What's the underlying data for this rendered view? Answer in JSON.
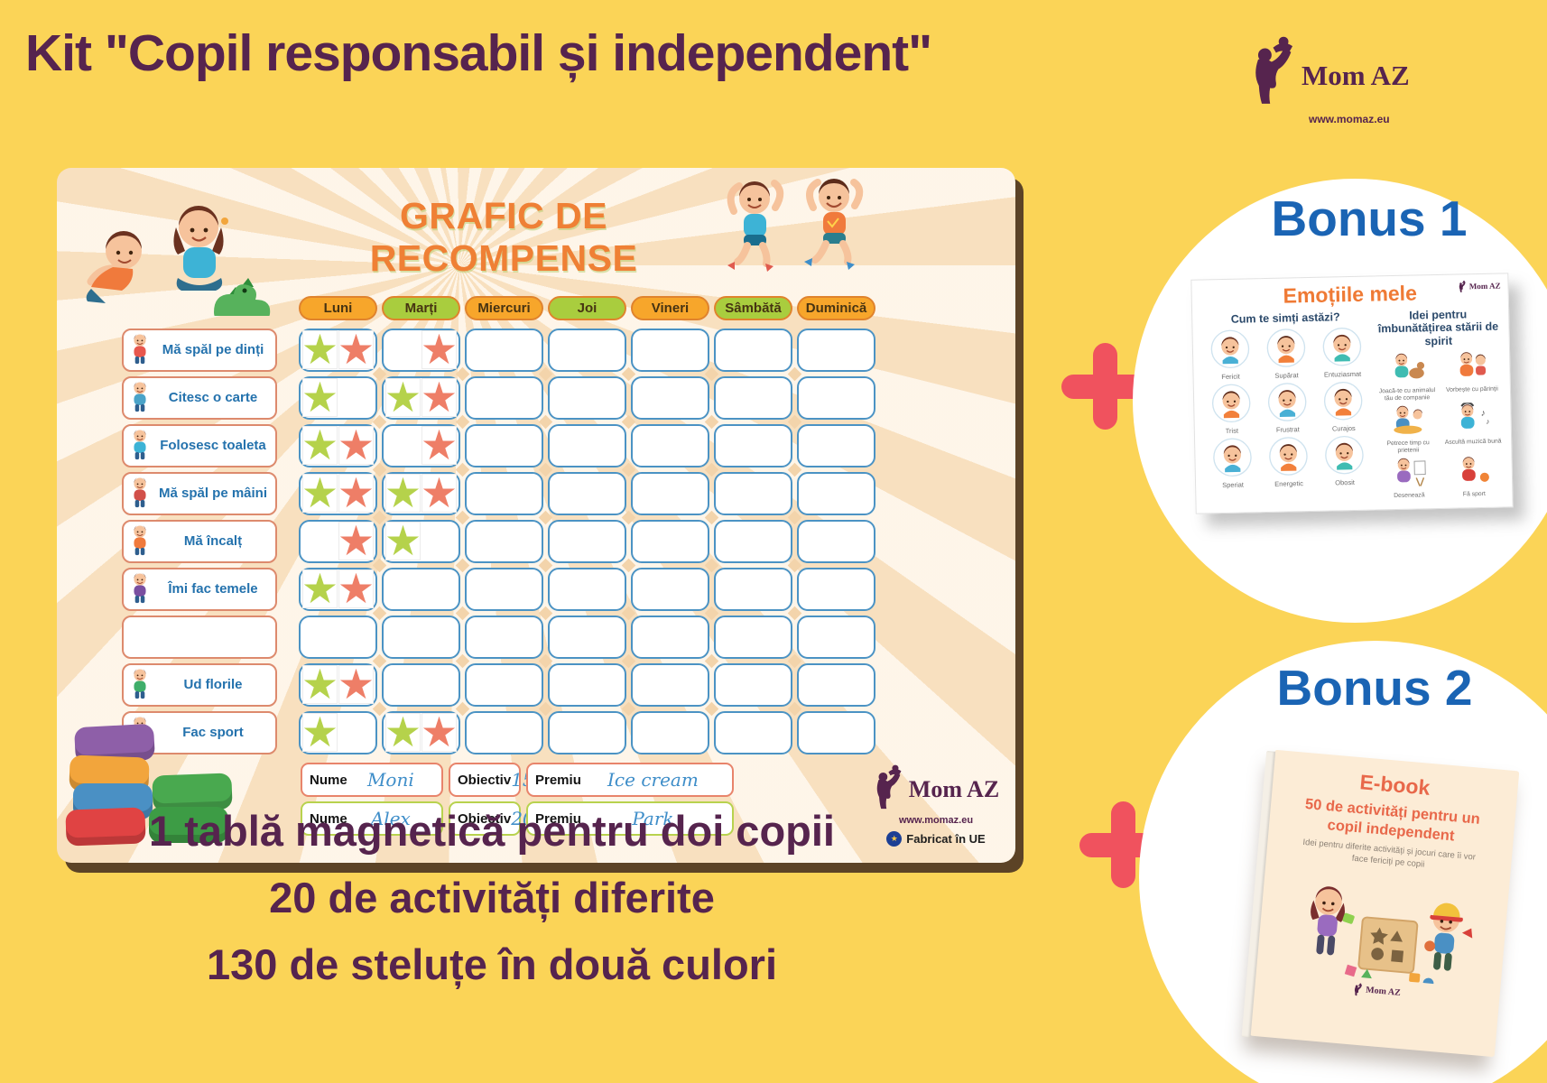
{
  "page": {
    "title": "Kit \"Copil responsabil și independent\"",
    "features": [
      "1 tablă magnetică pentru doi copii",
      "20 de activități diferite",
      "130 de steluțe în două culori"
    ]
  },
  "brand": {
    "name": "Mom AZ",
    "website": "www.momaz.eu"
  },
  "board": {
    "title": "GRAFIC DE RECOMPENSE",
    "made_in": "Fabricat în UE",
    "days": [
      "Luni",
      "Marți",
      "Miercuri",
      "Joi",
      "Vineri",
      "Sâmbătă",
      "Duminică"
    ],
    "day_colors": [
      "orange",
      "green",
      "orange",
      "green",
      "orange",
      "green",
      "orange"
    ],
    "star_colors": {
      "green": "#b5d24b",
      "orange": "#ee7e67"
    },
    "rows": [
      {
        "label": "Mă spăl pe dinți",
        "icon": "tooth-brushing-icon",
        "stars": [
          [
            "green",
            "orange"
          ],
          [
            null,
            "orange"
          ],
          null,
          null,
          null,
          null,
          null
        ]
      },
      {
        "label": "Citesc o carte",
        "icon": "reading-icon",
        "stars": [
          [
            "green",
            null
          ],
          [
            "green",
            "orange"
          ],
          null,
          null,
          null,
          null,
          null
        ]
      },
      {
        "label": "Folosesc toaleta",
        "icon": "toilet-icon",
        "stars": [
          [
            "green",
            "orange"
          ],
          [
            null,
            "orange"
          ],
          null,
          null,
          null,
          null,
          null
        ]
      },
      {
        "label": "Mă spăl pe mâini",
        "icon": "hand-washing-icon",
        "stars": [
          [
            "green",
            "orange"
          ],
          [
            "green",
            "orange"
          ],
          null,
          null,
          null,
          null,
          null
        ]
      },
      {
        "label": "Mă încalț",
        "icon": "shoes-icon",
        "stars": [
          [
            null,
            "orange"
          ],
          [
            "green",
            null
          ],
          null,
          null,
          null,
          null,
          null
        ]
      },
      {
        "label": "Îmi fac temele",
        "icon": "homework-icon",
        "stars": [
          [
            "green",
            "orange"
          ],
          null,
          null,
          null,
          null,
          null,
          null
        ]
      },
      {
        "label": "",
        "icon": "",
        "stars": [
          null,
          null,
          null,
          null,
          null,
          null,
          null
        ]
      },
      {
        "label": "Ud florile",
        "icon": "watering-flowers-icon",
        "stars": [
          [
            "green",
            "orange"
          ],
          null,
          null,
          null,
          null,
          null,
          null
        ]
      },
      {
        "label": "Fac sport",
        "icon": "sport-icon",
        "stars": [
          [
            "green",
            null
          ],
          [
            "green",
            "orange"
          ],
          null,
          null,
          null,
          null,
          null
        ]
      }
    ],
    "players": [
      {
        "name_label": "Nume",
        "name": "Moni",
        "objective_label": "Obiectiv",
        "objective": "15",
        "prize_label": "Premiu",
        "prize": "Ice cream",
        "accent": "#e8846b"
      },
      {
        "name_label": "Nume",
        "name": "Alex",
        "objective_label": "Obiectiv",
        "objective": "20",
        "prize_label": "Premiu",
        "prize": "Park",
        "accent": "#b8d24e"
      }
    ]
  },
  "bonus1": {
    "title": "Bonus 1",
    "poster_title": "Emoțiile mele",
    "left_heading": "Cum te simți astăzi?",
    "emotions": [
      "Fericit",
      "Supărat",
      "Entuziasmat",
      "Trist",
      "Frustrat",
      "Curajos",
      "Speriat",
      "Energetic",
      "Obosit"
    ],
    "right_heading": "Idei pentru îmbunătățirea stării de spirit",
    "ideas": [
      "Joacă-te cu animalul tău de companie",
      "Vorbește cu părinții",
      "Petrece timp cu prietenii",
      "Ascultă muzică bună",
      "Desenează",
      "Fă sport"
    ]
  },
  "bonus2": {
    "title": "Bonus 2",
    "ebook_kicker": "E-book",
    "ebook_title": "50 de activități pentru un copil independent",
    "ebook_subtitle": "Idei pentru diferite activități și jocuri care îi vor face fericiți pe copii"
  },
  "colors": {
    "background": "#fbd457",
    "headline": "#56244e",
    "board_bg": "#f8e0bf",
    "board_title": "#ef8035",
    "day_orange": "#f7a62b",
    "day_green": "#a9cd3e",
    "cell_border": "#4b93c4",
    "label_border": "#dd8a6d",
    "label_text": "#2472ad",
    "plus": "#f0525e",
    "bonus_title": "#1a64b4"
  }
}
